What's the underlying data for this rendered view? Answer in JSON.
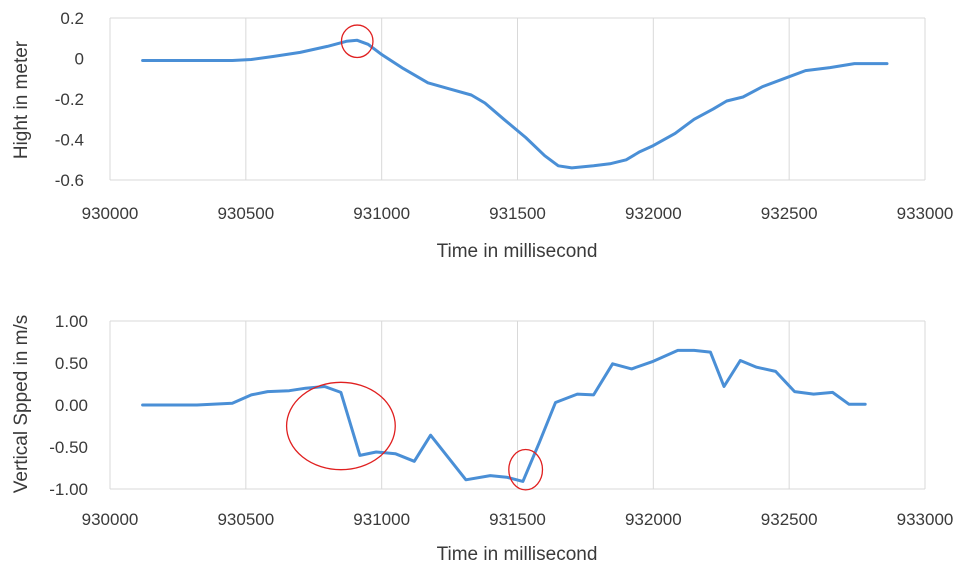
{
  "chart_data": [
    {
      "type": "line",
      "xlabel": "Time in millisecond",
      "ylabel": "Hight in meter",
      "xlim": [
        930000,
        933000
      ],
      "ylim": [
        -0.6,
        0.2
      ],
      "x_ticks": [
        930000,
        930500,
        931000,
        931500,
        932000,
        932500,
        933000
      ],
      "y_ticks": [
        0.2,
        0,
        -0.2,
        -0.4,
        -0.6
      ],
      "y_tick_labels": [
        "0.2",
        "0",
        "-0.2",
        "-0.4",
        "-0.6"
      ],
      "grid": "vertical",
      "color": "#4a8fd6",
      "series": [
        {
          "points": [
            [
              930120,
              -0.01
            ],
            [
              930300,
              -0.01
            ],
            [
              930450,
              -0.01
            ],
            [
              930520,
              -0.005
            ],
            [
              930600,
              0.01
            ],
            [
              930700,
              0.03
            ],
            [
              930800,
              0.06
            ],
            [
              930870,
              0.085
            ],
            [
              930910,
              0.09
            ],
            [
              930950,
              0.07
            ],
            [
              931000,
              0.02
            ],
            [
              931080,
              -0.05
            ],
            [
              931170,
              -0.12
            ],
            [
              931250,
              -0.15
            ],
            [
              931330,
              -0.18
            ],
            [
              931380,
              -0.22
            ],
            [
              931450,
              -0.3
            ],
            [
              931530,
              -0.39
            ],
            [
              931600,
              -0.48
            ],
            [
              931650,
              -0.53
            ],
            [
              931700,
              -0.54
            ],
            [
              931780,
              -0.53
            ],
            [
              931840,
              -0.52
            ],
            [
              931900,
              -0.5
            ],
            [
              931950,
              -0.46
            ],
            [
              932000,
              -0.43
            ],
            [
              932080,
              -0.37
            ],
            [
              932150,
              -0.3
            ],
            [
              932220,
              -0.25
            ],
            [
              932270,
              -0.21
            ],
            [
              932330,
              -0.19
            ],
            [
              932400,
              -0.14
            ],
            [
              932500,
              -0.09
            ],
            [
              932560,
              -0.06
            ],
            [
              932650,
              -0.045
            ],
            [
              932740,
              -0.025
            ],
            [
              932860,
              -0.025
            ]
          ]
        }
      ],
      "markers": [
        {
          "x": 930910,
          "y": 0.085,
          "rx_ms": 58,
          "ry": 0.08,
          "color": "#e02020"
        }
      ]
    },
    {
      "type": "line",
      "xlabel": "Time in millisecond",
      "ylabel": "Vertical Spped in m/s",
      "xlim": [
        930000,
        933000
      ],
      "ylim": [
        -1.0,
        1.0
      ],
      "x_ticks": [
        930000,
        930500,
        931000,
        931500,
        932000,
        932500,
        933000
      ],
      "y_ticks": [
        1.0,
        0.5,
        0.0,
        -0.5,
        -1.0
      ],
      "y_tick_labels": [
        "1.00",
        "0.50",
        "0.00",
        "-0.50",
        "-1.00"
      ],
      "grid": "vertical",
      "color": "#4a8fd6",
      "series": [
        {
          "points": [
            [
              930120,
              0.0
            ],
            [
              930200,
              0.0
            ],
            [
              930320,
              0.0
            ],
            [
              930450,
              0.02
            ],
            [
              930520,
              0.12
            ],
            [
              930580,
              0.16
            ],
            [
              930660,
              0.17
            ],
            [
              930720,
              0.2
            ],
            [
              930790,
              0.22
            ],
            [
              930850,
              0.15
            ],
            [
              930920,
              -0.6
            ],
            [
              930980,
              -0.56
            ],
            [
              931050,
              -0.58
            ],
            [
              931120,
              -0.67
            ],
            [
              931180,
              -0.36
            ],
            [
              931310,
              -0.89
            ],
            [
              931400,
              -0.84
            ],
            [
              931460,
              -0.86
            ],
            [
              931520,
              -0.91
            ],
            [
              931580,
              -0.45
            ],
            [
              931640,
              0.03
            ],
            [
              931720,
              0.13
            ],
            [
              931780,
              0.12
            ],
            [
              931850,
              0.49
            ],
            [
              931920,
              0.43
            ],
            [
              932000,
              0.52
            ],
            [
              932090,
              0.65
            ],
            [
              932150,
              0.65
            ],
            [
              932210,
              0.63
            ],
            [
              932260,
              0.22
            ],
            [
              932320,
              0.53
            ],
            [
              932380,
              0.45
            ],
            [
              932450,
              0.4
            ],
            [
              932520,
              0.16
            ],
            [
              932590,
              0.13
            ],
            [
              932660,
              0.15
            ],
            [
              932720,
              0.01
            ],
            [
              932780,
              0.01
            ]
          ]
        }
      ],
      "markers": [
        {
          "x": 930850,
          "y": -0.25,
          "rx_ms": 200,
          "ry": 0.52,
          "color": "#e02020"
        },
        {
          "x": 931530,
          "y": -0.77,
          "rx_ms": 62,
          "ry": 0.24,
          "color": "#e02020"
        }
      ]
    }
  ]
}
